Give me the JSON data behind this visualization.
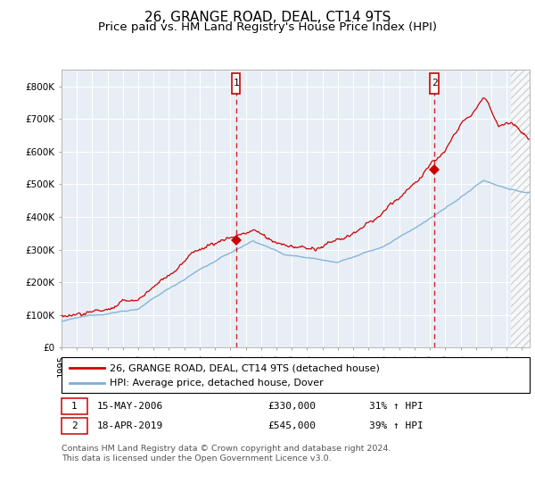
{
  "title": "26, GRANGE ROAD, DEAL, CT14 9TS",
  "subtitle": "Price paid vs. HM Land Registry's House Price Index (HPI)",
  "ylim": [
    0,
    850000
  ],
  "yticks": [
    0,
    100000,
    200000,
    300000,
    400000,
    500000,
    600000,
    700000,
    800000
  ],
  "ytick_labels": [
    "£0",
    "£100K",
    "£200K",
    "£300K",
    "£400K",
    "£500K",
    "£600K",
    "£700K",
    "£800K"
  ],
  "xlim_start": 1995.0,
  "xlim_end": 2025.5,
  "background_color": "#E8EEF5",
  "hpi_color": "#7BAFD4",
  "price_color": "#CC0000",
  "marker1_x": 2006.37,
  "marker1_y": 330000,
  "marker1_label": "1",
  "marker2_x": 2019.29,
  "marker2_y": 545000,
  "marker2_label": "2",
  "hatch_start": 2024.3,
  "legend_label1": "26, GRANGE ROAD, DEAL, CT14 9TS (detached house)",
  "legend_label2": "HPI: Average price, detached house, Dover",
  "table_row1": [
    "1",
    "15-MAY-2006",
    "£330,000",
    "31% ↑ HPI"
  ],
  "table_row2": [
    "2",
    "18-APR-2019",
    "£545,000",
    "39% ↑ HPI"
  ],
  "footer": "Contains HM Land Registry data © Crown copyright and database right 2024.\nThis data is licensed under the Open Government Licence v3.0.",
  "title_fontsize": 11,
  "subtitle_fontsize": 9.5,
  "tick_fontsize": 7.5,
  "legend_fontsize": 8,
  "table_fontsize": 8,
  "footer_fontsize": 6.8
}
